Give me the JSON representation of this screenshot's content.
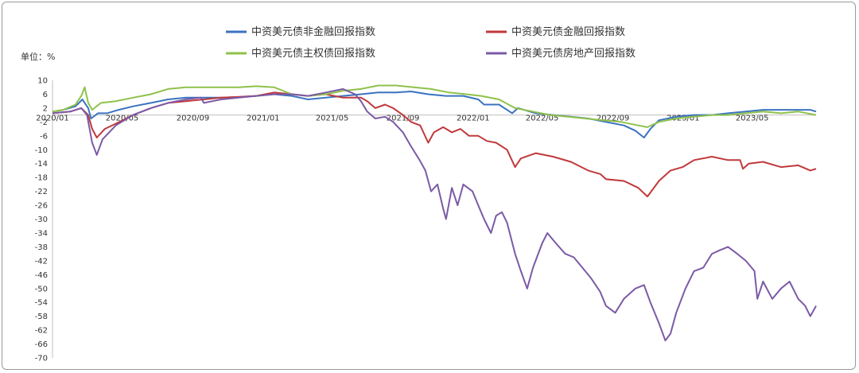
{
  "chart_data": {
    "type": "line",
    "unit_label": "单位：%",
    "ylim": [
      -70,
      10
    ],
    "y_ticks": [
      10,
      6,
      2,
      -2,
      -6,
      -10,
      -14,
      -18,
      -22,
      -26,
      -30,
      -34,
      -38,
      -42,
      -46,
      -50,
      -54,
      -58,
      -62,
      -66,
      -70
    ],
    "x_range": [
      "2020-01-01",
      "2023-08-20"
    ],
    "x_ticks": [
      {
        "date": "2020-01-01",
        "label": "2020/01"
      },
      {
        "date": "2020-05-01",
        "label": "2020/05"
      },
      {
        "date": "2020-09-01",
        "label": "2020/09"
      },
      {
        "date": "2021-01-01",
        "label": "2021/01"
      },
      {
        "date": "2021-05-01",
        "label": "2021/05"
      },
      {
        "date": "2021-09-01",
        "label": "2021/09"
      },
      {
        "date": "2022-01-01",
        "label": "2022/01"
      },
      {
        "date": "2022-05-01",
        "label": "2022/05"
      },
      {
        "date": "2022-09-01",
        "label": "2022/09"
      },
      {
        "date": "2023-01-01",
        "label": "2023/01"
      },
      {
        "date": "2023-05-01",
        "label": "2023/05"
      }
    ],
    "grid": false,
    "legend_position": "top",
    "series": [
      {
        "name": "中资美元债非金融回报指数",
        "color": "#3a73c0",
        "points": [
          [
            "2020-01-01",
            1
          ],
          [
            "2020-01-20",
            1.5
          ],
          [
            "2020-02-10",
            2.5
          ],
          [
            "2020-02-22",
            4.5
          ],
          [
            "2020-03-03",
            2
          ],
          [
            "2020-03-08",
            -1
          ],
          [
            "2020-03-20",
            0.5
          ],
          [
            "2020-04-05",
            0.5
          ],
          [
            "2020-04-25",
            1.5
          ],
          [
            "2020-05-20",
            2.5
          ],
          [
            "2020-06-20",
            3.5
          ],
          [
            "2020-07-20",
            4.5
          ],
          [
            "2020-08-20",
            5
          ],
          [
            "2020-09-20",
            5
          ],
          [
            "2020-10-20",
            5
          ],
          [
            "2020-11-20",
            5.2
          ],
          [
            "2020-12-20",
            5.5
          ],
          [
            "2021-01-20",
            6
          ],
          [
            "2021-02-20",
            5.5
          ],
          [
            "2021-03-20",
            4.5
          ],
          [
            "2021-04-20",
            5
          ],
          [
            "2021-05-20",
            5.5
          ],
          [
            "2021-06-20",
            6
          ],
          [
            "2021-07-20",
            6.5
          ],
          [
            "2021-08-20",
            6.5
          ],
          [
            "2021-09-15",
            6.8
          ],
          [
            "2021-10-15",
            6
          ],
          [
            "2021-11-15",
            5.5
          ],
          [
            "2021-12-15",
            5.5
          ],
          [
            "2022-01-10",
            4.5
          ],
          [
            "2022-01-20",
            3
          ],
          [
            "2022-02-15",
            3
          ],
          [
            "2022-03-10",
            0.5
          ],
          [
            "2022-03-20",
            2
          ],
          [
            "2022-04-20",
            0.5
          ],
          [
            "2022-05-20",
            0
          ],
          [
            "2022-06-20",
            -0.5
          ],
          [
            "2022-07-20",
            -1
          ],
          [
            "2022-08-20",
            -2
          ],
          [
            "2022-09-20",
            -3
          ],
          [
            "2022-10-10",
            -4.5
          ],
          [
            "2022-10-25",
            -6.5
          ],
          [
            "2022-11-05",
            -4
          ],
          [
            "2022-11-20",
            -1.5
          ],
          [
            "2022-12-20",
            -0.5
          ],
          [
            "2023-01-20",
            0
          ],
          [
            "2023-02-20",
            0
          ],
          [
            "2023-03-20",
            0.5
          ],
          [
            "2023-04-20",
            1
          ],
          [
            "2023-05-20",
            1.5
          ],
          [
            "2023-06-20",
            1.5
          ],
          [
            "2023-07-20",
            1.5
          ],
          [
            "2023-08-10",
            1.5
          ],
          [
            "2023-08-20",
            1
          ]
        ]
      },
      {
        "name": "中资美元债金融回报指数",
        "color": "#c0393b",
        "points": [
          [
            "2020-01-01",
            0.5
          ],
          [
            "2020-02-01",
            1
          ],
          [
            "2020-02-20",
            2
          ],
          [
            "2020-03-03",
            0
          ],
          [
            "2020-03-10",
            -4
          ],
          [
            "2020-03-18",
            -6.5
          ],
          [
            "2020-04-01",
            -4
          ],
          [
            "2020-04-20",
            -2.5
          ],
          [
            "2020-05-20",
            0
          ],
          [
            "2020-06-20",
            2
          ],
          [
            "2020-07-20",
            3.5
          ],
          [
            "2020-08-20",
            4
          ],
          [
            "2020-09-20",
            4.5
          ],
          [
            "2020-10-20",
            5
          ],
          [
            "2020-11-20",
            5.2
          ],
          [
            "2020-12-20",
            5.5
          ],
          [
            "2021-01-20",
            6.5
          ],
          [
            "2021-02-20",
            6
          ],
          [
            "2021-03-20",
            5.5
          ],
          [
            "2021-04-20",
            6
          ],
          [
            "2021-05-20",
            5
          ],
          [
            "2021-06-20",
            5
          ],
          [
            "2021-07-01",
            4
          ],
          [
            "2021-07-15",
            2
          ],
          [
            "2021-08-01",
            3
          ],
          [
            "2021-08-15",
            2
          ],
          [
            "2021-09-01",
            0
          ],
          [
            "2021-09-15",
            -2
          ],
          [
            "2021-10-01",
            -3
          ],
          [
            "2021-10-15",
            -8
          ],
          [
            "2021-10-25",
            -5
          ],
          [
            "2021-11-10",
            -3.5
          ],
          [
            "2021-11-25",
            -5
          ],
          [
            "2021-12-10",
            -4
          ],
          [
            "2021-12-25",
            -6
          ],
          [
            "2022-01-10",
            -6
          ],
          [
            "2022-01-25",
            -7.5
          ],
          [
            "2022-02-10",
            -8
          ],
          [
            "2022-03-01",
            -10
          ],
          [
            "2022-03-15",
            -15
          ],
          [
            "2022-03-25",
            -12.5
          ],
          [
            "2022-04-20",
            -11
          ],
          [
            "2022-05-20",
            -12
          ],
          [
            "2022-06-20",
            -13.5
          ],
          [
            "2022-07-20",
            -16
          ],
          [
            "2022-08-10",
            -17
          ],
          [
            "2022-08-20",
            -18.5
          ],
          [
            "2022-09-20",
            -19
          ],
          [
            "2022-10-15",
            -21
          ],
          [
            "2022-10-31",
            -23.5
          ],
          [
            "2022-11-20",
            -19
          ],
          [
            "2022-12-10",
            -16
          ],
          [
            "2022-12-31",
            -15
          ],
          [
            "2023-01-20",
            -13
          ],
          [
            "2023-02-20",
            -12
          ],
          [
            "2023-03-20",
            -13
          ],
          [
            "2023-04-10",
            -13
          ],
          [
            "2023-04-15",
            -15.5
          ],
          [
            "2023-04-25",
            -14
          ],
          [
            "2023-05-20",
            -13.5
          ],
          [
            "2023-06-20",
            -15
          ],
          [
            "2023-07-20",
            -14.5
          ],
          [
            "2023-08-10",
            -16
          ],
          [
            "2023-08-20",
            -15.5
          ]
        ]
      },
      {
        "name": "中资美元债主权债回报指数",
        "color": "#8fc14a",
        "points": [
          [
            "2020-01-01",
            1
          ],
          [
            "2020-01-20",
            1.5
          ],
          [
            "2020-02-10",
            3
          ],
          [
            "2020-02-20",
            5.5
          ],
          [
            "2020-02-26",
            8
          ],
          [
            "2020-03-03",
            3.5
          ],
          [
            "2020-03-10",
            1.5
          ],
          [
            "2020-03-25",
            3.5
          ],
          [
            "2020-04-20",
            4
          ],
          [
            "2020-05-20",
            5
          ],
          [
            "2020-06-20",
            6
          ],
          [
            "2020-07-20",
            7.5
          ],
          [
            "2020-08-20",
            8
          ],
          [
            "2020-09-20",
            8
          ],
          [
            "2020-10-20",
            8
          ],
          [
            "2020-11-20",
            8
          ],
          [
            "2020-12-20",
            8.3
          ],
          [
            "2021-01-20",
            8
          ],
          [
            "2021-02-20",
            6
          ],
          [
            "2021-03-20",
            5.5
          ],
          [
            "2021-04-20",
            6
          ],
          [
            "2021-05-20",
            7
          ],
          [
            "2021-06-20",
            7.5
          ],
          [
            "2021-07-20",
            8.5
          ],
          [
            "2021-08-20",
            8.5
          ],
          [
            "2021-09-20",
            8
          ],
          [
            "2021-10-20",
            7.5
          ],
          [
            "2021-11-20",
            6.5
          ],
          [
            "2021-12-20",
            6
          ],
          [
            "2022-01-15",
            5.5
          ],
          [
            "2022-02-15",
            4.5
          ],
          [
            "2022-03-15",
            2
          ],
          [
            "2022-04-15",
            1
          ],
          [
            "2022-05-15",
            0
          ],
          [
            "2022-06-15",
            -0.5
          ],
          [
            "2022-07-15",
            -1
          ],
          [
            "2022-08-15",
            -1.5
          ],
          [
            "2022-09-15",
            -2
          ],
          [
            "2022-10-15",
            -3
          ],
          [
            "2022-10-31",
            -3.5
          ],
          [
            "2022-11-20",
            -2
          ],
          [
            "2022-12-20",
            -1
          ],
          [
            "2023-01-20",
            -0.5
          ],
          [
            "2023-02-20",
            0
          ],
          [
            "2023-03-20",
            0
          ],
          [
            "2023-04-20",
            0.5
          ],
          [
            "2023-05-20",
            1
          ],
          [
            "2023-06-20",
            0.5
          ],
          [
            "2023-07-20",
            1
          ],
          [
            "2023-08-20",
            0
          ]
        ]
      },
      {
        "name": "中资美元债房地产回报指数",
        "color": "#7b5aa6",
        "points": [
          [
            "2020-01-01",
            0.5
          ],
          [
            "2020-02-01",
            1
          ],
          [
            "2020-02-20",
            2
          ],
          [
            "2020-03-01",
            0
          ],
          [
            "2020-03-10",
            -8
          ],
          [
            "2020-03-18",
            -11.5
          ],
          [
            "2020-03-28",
            -7
          ],
          [
            "2020-04-20",
            -3
          ],
          [
            "2020-05-20",
            0
          ],
          [
            "2020-06-20",
            2
          ],
          [
            "2020-07-20",
            3.5
          ],
          [
            "2020-08-20",
            4.5
          ],
          [
            "2020-09-15",
            5
          ],
          [
            "2020-09-20",
            3.5
          ],
          [
            "2020-10-20",
            4.5
          ],
          [
            "2020-11-20",
            5
          ],
          [
            "2020-12-20",
            5.5
          ],
          [
            "2021-01-20",
            6
          ],
          [
            "2021-02-20",
            6
          ],
          [
            "2021-03-20",
            5.5
          ],
          [
            "2021-04-20",
            6.5
          ],
          [
            "2021-05-20",
            7.5
          ],
          [
            "2021-06-10",
            6
          ],
          [
            "2021-06-20",
            4
          ],
          [
            "2021-07-01",
            1
          ],
          [
            "2021-07-15",
            -1
          ],
          [
            "2021-08-01",
            -0.5
          ],
          [
            "2021-08-15",
            -2
          ],
          [
            "2021-09-01",
            -5
          ],
          [
            "2021-09-15",
            -9
          ],
          [
            "2021-09-30",
            -13
          ],
          [
            "2021-10-10",
            -16
          ],
          [
            "2021-10-20",
            -22
          ],
          [
            "2021-10-31",
            -20
          ],
          [
            "2021-11-10",
            -27
          ],
          [
            "2021-11-15",
            -30
          ],
          [
            "2021-11-25",
            -21
          ],
          [
            "2021-12-05",
            -26
          ],
          [
            "2021-12-15",
            -20
          ],
          [
            "2021-12-31",
            -22
          ],
          [
            "2022-01-10",
            -26
          ],
          [
            "2022-01-20",
            -30
          ],
          [
            "2022-02-01",
            -34
          ],
          [
            "2022-02-10",
            -29
          ],
          [
            "2022-02-20",
            -28
          ],
          [
            "2022-03-01",
            -31
          ],
          [
            "2022-03-15",
            -40
          ],
          [
            "2022-03-25",
            -45
          ],
          [
            "2022-04-05",
            -50
          ],
          [
            "2022-04-15",
            -44
          ],
          [
            "2022-05-01",
            -37
          ],
          [
            "2022-05-10",
            -34
          ],
          [
            "2022-05-25",
            -37
          ],
          [
            "2022-06-10",
            -40
          ],
          [
            "2022-06-25",
            -41
          ],
          [
            "2022-07-10",
            -44
          ],
          [
            "2022-07-25",
            -47
          ],
          [
            "2022-08-10",
            -51
          ],
          [
            "2022-08-20",
            -55
          ],
          [
            "2022-09-05",
            -57
          ],
          [
            "2022-09-20",
            -53
          ],
          [
            "2022-10-10",
            -50
          ],
          [
            "2022-10-25",
            -49
          ],
          [
            "2022-11-05",
            -54
          ],
          [
            "2022-11-20",
            -60
          ],
          [
            "2022-12-01",
            -65
          ],
          [
            "2022-12-10",
            -63
          ],
          [
            "2022-12-20",
            -57
          ],
          [
            "2023-01-05",
            -50
          ],
          [
            "2023-01-20",
            -45
          ],
          [
            "2023-02-05",
            -44
          ],
          [
            "2023-02-20",
            -40
          ],
          [
            "2023-03-05",
            -39
          ],
          [
            "2023-03-20",
            -38
          ],
          [
            "2023-04-05",
            -40
          ],
          [
            "2023-04-20",
            -42
          ],
          [
            "2023-05-05",
            -45
          ],
          [
            "2023-05-10",
            -53
          ],
          [
            "2023-05-20",
            -48
          ],
          [
            "2023-06-05",
            -53
          ],
          [
            "2023-06-20",
            -50
          ],
          [
            "2023-07-05",
            -48
          ],
          [
            "2023-07-20",
            -53
          ],
          [
            "2023-08-01",
            -55
          ],
          [
            "2023-08-10",
            -58
          ],
          [
            "2023-08-20",
            -55
          ]
        ]
      }
    ]
  }
}
